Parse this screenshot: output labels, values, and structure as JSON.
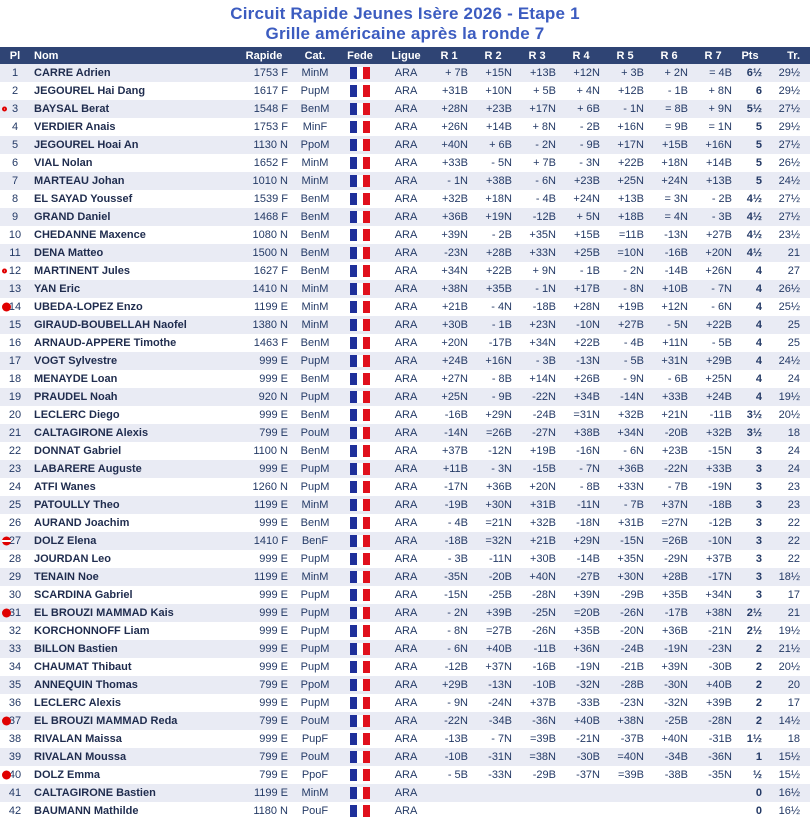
{
  "page_title": {
    "line1": "Circuit Rapide Jeunes Isère 2026 - Etape 1",
    "line2": "Grille américaine après la ronde 7"
  },
  "colors": {
    "title_blue": "#3c5cc0",
    "header_bar_bg": "#2f4474",
    "header_text": "#ffffff",
    "row_alt_bg": "#e9ebf4",
    "body_text": "#243a66",
    "marker_red": "#e00000",
    "flag_blue": "#1e2f9a",
    "flag_red": "#e0101d"
  },
  "table": {
    "columns": [
      "Pl",
      "Nom",
      "Rapide",
      "Cat.",
      "Fede",
      "Ligue",
      "R 1",
      "R 2",
      "R 3",
      "R 4",
      "R 5",
      "R 6",
      "R 7",
      "Pts",
      "Tr."
    ],
    "flag_icon": "france-flag",
    "rows": [
      {
        "marker": "",
        "pl": "1",
        "nom": "CARRE Adrien",
        "rapide": "1753 F",
        "cat": "MinM",
        "ligue": "ARA",
        "rounds": [
          "+ 7B",
          "+15N",
          "+13B",
          "+12N",
          "+ 3B",
          "+ 2N",
          "= 4B"
        ],
        "pts": "6½",
        "tr": "29½"
      },
      {
        "marker": "",
        "pl": "2",
        "nom": "JEGOUREL Hai Dang",
        "rapide": "1617 F",
        "cat": "PupM",
        "ligue": "ARA",
        "rounds": [
          "+31B",
          "+10N",
          "+ 5B",
          "+ 4N",
          "+12B",
          "- 1B",
          "+ 8N"
        ],
        "pts": "6",
        "tr": "29½"
      },
      {
        "marker": "ring",
        "pl": "3",
        "nom": "BAYSAL Berat",
        "rapide": "1548 F",
        "cat": "BenM",
        "ligue": "ARA",
        "rounds": [
          "+28N",
          "+23B",
          "+17N",
          "+ 6B",
          "- 1N",
          "= 8B",
          "+ 9N"
        ],
        "pts": "5½",
        "tr": "27½"
      },
      {
        "marker": "",
        "pl": "4",
        "nom": "VERDIER Anais",
        "rapide": "1753 F",
        "cat": "MinF",
        "ligue": "ARA",
        "rounds": [
          "+26N",
          "+14B",
          "+ 8N",
          "- 2B",
          "+16N",
          "= 9B",
          "= 1N"
        ],
        "pts": "5",
        "tr": "29½"
      },
      {
        "marker": "",
        "pl": "5",
        "nom": "JEGOUREL Hoai An",
        "rapide": "1130 N",
        "cat": "PpoM",
        "ligue": "ARA",
        "rounds": [
          "+40N",
          "+ 6B",
          "- 2N",
          "- 9B",
          "+17N",
          "+15B",
          "+16N"
        ],
        "pts": "5",
        "tr": "27½"
      },
      {
        "marker": "",
        "pl": "6",
        "nom": "VIAL Nolan",
        "rapide": "1652 F",
        "cat": "MinM",
        "ligue": "ARA",
        "rounds": [
          "+33B",
          "- 5N",
          "+ 7B",
          "- 3N",
          "+22B",
          "+18N",
          "+14B"
        ],
        "pts": "5",
        "tr": "26½"
      },
      {
        "marker": "",
        "pl": "7",
        "nom": "MARTEAU Johan",
        "rapide": "1010 N",
        "cat": "MinM",
        "ligue": "ARA",
        "rounds": [
          "- 1N",
          "+38B",
          "- 6N",
          "+23B",
          "+25N",
          "+24N",
          "+13B"
        ],
        "pts": "5",
        "tr": "24½"
      },
      {
        "marker": "",
        "pl": "8",
        "nom": "EL SAYAD Youssef",
        "rapide": "1539 F",
        "cat": "BenM",
        "ligue": "ARA",
        "rounds": [
          "+32B",
          "+18N",
          "- 4B",
          "+24N",
          "+13B",
          "= 3N",
          "- 2B"
        ],
        "pts": "4½",
        "tr": "27½"
      },
      {
        "marker": "",
        "pl": "9",
        "nom": "GRAND Daniel",
        "rapide": "1468 F",
        "cat": "BenM",
        "ligue": "ARA",
        "rounds": [
          "+36B",
          "+19N",
          "-12B",
          "+ 5N",
          "+18B",
          "= 4N",
          "- 3B"
        ],
        "pts": "4½",
        "tr": "27½"
      },
      {
        "marker": "",
        "pl": "10",
        "nom": "CHEDANNE Maxence",
        "rapide": "1080 N",
        "cat": "BenM",
        "ligue": "ARA",
        "rounds": [
          "+39N",
          "- 2B",
          "+35N",
          "+15B",
          "=11B",
          "-13N",
          "+27B"
        ],
        "pts": "4½",
        "tr": "23½"
      },
      {
        "marker": "",
        "pl": "11",
        "nom": "DENA Matteo",
        "rapide": "1500 N",
        "cat": "BenM",
        "ligue": "ARA",
        "rounds": [
          "-23N",
          "+28B",
          "+33N",
          "+25B",
          "=10N",
          "-16B",
          "+20N"
        ],
        "pts": "4½",
        "tr": "21"
      },
      {
        "marker": "ring",
        "pl": "12",
        "nom": "MARTINENT Jules",
        "rapide": "1627 F",
        "cat": "BenM",
        "ligue": "ARA",
        "rounds": [
          "+34N",
          "+22B",
          "+ 9N",
          "- 1B",
          "- 2N",
          "-14B",
          "+26N"
        ],
        "pts": "4",
        "tr": "27"
      },
      {
        "marker": "",
        "pl": "13",
        "nom": "YAN Eric",
        "rapide": "1410 N",
        "cat": "MinM",
        "ligue": "ARA",
        "rounds": [
          "+38N",
          "+35B",
          "- 1N",
          "+17B",
          "- 8N",
          "+10B",
          "- 7N"
        ],
        "pts": "4",
        "tr": "26½"
      },
      {
        "marker": "dot",
        "pl": "14",
        "nom": "UBEDA-LOPEZ Enzo",
        "rapide": "1199 E",
        "cat": "MinM",
        "ligue": "ARA",
        "rounds": [
          "+21B",
          "- 4N",
          "-18B",
          "+28N",
          "+19B",
          "+12N",
          "- 6N"
        ],
        "pts": "4",
        "tr": "25½"
      },
      {
        "marker": "",
        "pl": "15",
        "nom": "GIRAUD-BOUBELLAH Naofel",
        "rapide": "1380 N",
        "cat": "MinM",
        "ligue": "ARA",
        "rounds": [
          "+30B",
          "- 1B",
          "+23N",
          "-10N",
          "+27B",
          "- 5N",
          "+22B"
        ],
        "pts": "4",
        "tr": "25"
      },
      {
        "marker": "",
        "pl": "16",
        "nom": "ARNAUD-APPERE Timothe",
        "rapide": "1463 F",
        "cat": "BenM",
        "ligue": "ARA",
        "rounds": [
          "+20N",
          "-17B",
          "+34N",
          "+22B",
          "- 4B",
          "+11N",
          "- 5B"
        ],
        "pts": "4",
        "tr": "25"
      },
      {
        "marker": "",
        "pl": "17",
        "nom": "VOGT Sylvestre",
        "rapide": "999 E",
        "cat": "PupM",
        "ligue": "ARA",
        "rounds": [
          "+24B",
          "+16N",
          "- 3B",
          "-13N",
          "- 5B",
          "+31N",
          "+29B"
        ],
        "pts": "4",
        "tr": "24½"
      },
      {
        "marker": "",
        "pl": "18",
        "nom": "MENAYDE Loan",
        "rapide": "999 E",
        "cat": "BenM",
        "ligue": "ARA",
        "rounds": [
          "+27N",
          "- 8B",
          "+14N",
          "+26B",
          "- 9N",
          "- 6B",
          "+25N"
        ],
        "pts": "4",
        "tr": "24"
      },
      {
        "marker": "",
        "pl": "19",
        "nom": "PRAUDEL Noah",
        "rapide": "920 N",
        "cat": "PupM",
        "ligue": "ARA",
        "rounds": [
          "+25N",
          "- 9B",
          "-22N",
          "+34B",
          "-14N",
          "+33B",
          "+24B"
        ],
        "pts": "4",
        "tr": "19½"
      },
      {
        "marker": "",
        "pl": "20",
        "nom": "LECLERC Diego",
        "rapide": "999 E",
        "cat": "BenM",
        "ligue": "ARA",
        "rounds": [
          "-16B",
          "+29N",
          "-24B",
          "=31N",
          "+32B",
          "+21N",
          "-11B"
        ],
        "pts": "3½",
        "tr": "20½"
      },
      {
        "marker": "",
        "pl": "21",
        "nom": "CALTAGIRONE Alexis",
        "rapide": "799 E",
        "cat": "PouM",
        "ligue": "ARA",
        "rounds": [
          "-14N",
          "=26B",
          "-27N",
          "+38B",
          "+34N",
          "-20B",
          "+32B"
        ],
        "pts": "3½",
        "tr": "18"
      },
      {
        "marker": "",
        "pl": "22",
        "nom": "DONNAT Gabriel",
        "rapide": "1100 N",
        "cat": "BenM",
        "ligue": "ARA",
        "rounds": [
          "+37B",
          "-12N",
          "+19B",
          "-16N",
          "- 6N",
          "+23B",
          "-15N"
        ],
        "pts": "3",
        "tr": "24"
      },
      {
        "marker": "",
        "pl": "23",
        "nom": "LABARERE Auguste",
        "rapide": "999 E",
        "cat": "PupM",
        "ligue": "ARA",
        "rounds": [
          "+11B",
          "- 3N",
          "-15B",
          "- 7N",
          "+36B",
          "-22N",
          "+33B"
        ],
        "pts": "3",
        "tr": "24"
      },
      {
        "marker": "",
        "pl": "24",
        "nom": "ATFI Wanes",
        "rapide": "1260 N",
        "cat": "PupM",
        "ligue": "ARA",
        "rounds": [
          "-17N",
          "+36B",
          "+20N",
          "- 8B",
          "+33N",
          "- 7B",
          "-19N"
        ],
        "pts": "3",
        "tr": "23"
      },
      {
        "marker": "",
        "pl": "25",
        "nom": "PATOULLY Theo",
        "rapide": "1199 E",
        "cat": "MinM",
        "ligue": "ARA",
        "rounds": [
          "-19B",
          "+30N",
          "+31B",
          "-11N",
          "- 7B",
          "+37N",
          "-18B"
        ],
        "pts": "3",
        "tr": "23"
      },
      {
        "marker": "",
        "pl": "26",
        "nom": "AURAND Joachim",
        "rapide": "999 E",
        "cat": "BenM",
        "ligue": "ARA",
        "rounds": [
          "- 4B",
          "=21N",
          "+32B",
          "-18N",
          "+31B",
          "=27N",
          "-12B"
        ],
        "pts": "3",
        "tr": "22"
      },
      {
        "marker": "bar",
        "pl": "27",
        "nom": "DOLZ Elena",
        "rapide": "1410 F",
        "cat": "BenF",
        "ligue": "ARA",
        "rounds": [
          "-18B",
          "=32N",
          "+21B",
          "+29N",
          "-15N",
          "=26B",
          "-10N"
        ],
        "pts": "3",
        "tr": "22"
      },
      {
        "marker": "",
        "pl": "28",
        "nom": "JOURDAN Leo",
        "rapide": "999 E",
        "cat": "PupM",
        "ligue": "ARA",
        "rounds": [
          "- 3B",
          "-11N",
          "+30B",
          "-14B",
          "+35N",
          "-29N",
          "+37B"
        ],
        "pts": "3",
        "tr": "22"
      },
      {
        "marker": "",
        "pl": "29",
        "nom": "TENAIN Noe",
        "rapide": "1199 E",
        "cat": "MinM",
        "ligue": "ARA",
        "rounds": [
          "-35N",
          "-20B",
          "+40N",
          "-27B",
          "+30N",
          "+28B",
          "-17N"
        ],
        "pts": "3",
        "tr": "18½"
      },
      {
        "marker": "",
        "pl": "30",
        "nom": "SCARDINA Gabriel",
        "rapide": "999 E",
        "cat": "PupM",
        "ligue": "ARA",
        "rounds": [
          "-15N",
          "-25B",
          "-28N",
          "+39N",
          "-29B",
          "+35B",
          "+34N"
        ],
        "pts": "3",
        "tr": "17"
      },
      {
        "marker": "dot",
        "pl": "31",
        "nom": "EL BROUZI MAMMAD Kais",
        "rapide": "999 E",
        "cat": "PupM",
        "ligue": "ARA",
        "rounds": [
          "- 2N",
          "+39B",
          "-25N",
          "=20B",
          "-26N",
          "-17B",
          "+38N"
        ],
        "pts": "2½",
        "tr": "21"
      },
      {
        "marker": "",
        "pl": "32",
        "nom": "KORCHONNOFF Liam",
        "rapide": "999 E",
        "cat": "PupM",
        "ligue": "ARA",
        "rounds": [
          "- 8N",
          "=27B",
          "-26N",
          "+35B",
          "-20N",
          "+36B",
          "-21N"
        ],
        "pts": "2½",
        "tr": "19½"
      },
      {
        "marker": "",
        "pl": "33",
        "nom": "BILLON Bastien",
        "rapide": "999 E",
        "cat": "PupM",
        "ligue": "ARA",
        "rounds": [
          "- 6N",
          "+40B",
          "-11B",
          "+36N",
          "-24B",
          "-19N",
          "-23N"
        ],
        "pts": "2",
        "tr": "21½"
      },
      {
        "marker": "",
        "pl": "34",
        "nom": "CHAUMAT Thibaut",
        "rapide": "999 E",
        "cat": "PupM",
        "ligue": "ARA",
        "rounds": [
          "-12B",
          "+37N",
          "-16B",
          "-19N",
          "-21B",
          "+39N",
          "-30B"
        ],
        "pts": "2",
        "tr": "20½"
      },
      {
        "marker": "",
        "pl": "35",
        "nom": "ANNEQUIN Thomas",
        "rapide": "799 E",
        "cat": "PpoM",
        "ligue": "ARA",
        "rounds": [
          "+29B",
          "-13N",
          "-10B",
          "-32N",
          "-28B",
          "-30N",
          "+40B"
        ],
        "pts": "2",
        "tr": "20"
      },
      {
        "marker": "",
        "pl": "36",
        "nom": "LECLERC Alexis",
        "rapide": "999 E",
        "cat": "PupM",
        "ligue": "ARA",
        "rounds": [
          "- 9N",
          "-24N",
          "+37B",
          "-33B",
          "-23N",
          "-32N",
          "+39B"
        ],
        "pts": "2",
        "tr": "17"
      },
      {
        "marker": "dot",
        "pl": "37",
        "nom": "EL BROUZI MAMMAD Reda",
        "rapide": "799 E",
        "cat": "PouM",
        "ligue": "ARA",
        "rounds": [
          "-22N",
          "-34B",
          "-36N",
          "+40B",
          "+38N",
          "-25B",
          "-28N"
        ],
        "pts": "2",
        "tr": "14½"
      },
      {
        "marker": "",
        "pl": "38",
        "nom": "RIVALAN Maissa",
        "rapide": "999 E",
        "cat": "PupF",
        "ligue": "ARA",
        "rounds": [
          "-13B",
          "- 7N",
          "=39B",
          "-21N",
          "-37B",
          "+40N",
          "-31B"
        ],
        "pts": "1½",
        "tr": "18"
      },
      {
        "marker": "",
        "pl": "39",
        "nom": "RIVALAN Moussa",
        "rapide": "799 E",
        "cat": "PouM",
        "ligue": "ARA",
        "rounds": [
          "-10B",
          "-31N",
          "=38N",
          "-30B",
          "=40N",
          "-34B",
          "-36N"
        ],
        "pts": "1",
        "tr": "15½"
      },
      {
        "marker": "dot",
        "pl": "40",
        "nom": "DOLZ Emma",
        "rapide": "799 E",
        "cat": "PpoF",
        "ligue": "ARA",
        "rounds": [
          "- 5B",
          "-33N",
          "-29B",
          "-37N",
          "=39B",
          "-38B",
          "-35N"
        ],
        "pts": "½",
        "tr": "15½"
      },
      {
        "marker": "",
        "pl": "41",
        "nom": "CALTAGIRONE Bastien",
        "rapide": "1199 E",
        "cat": "MinM",
        "ligue": "ARA",
        "rounds": [
          "",
          "",
          "",
          "",
          "",
          "",
          ""
        ],
        "pts": "0",
        "tr": "16½"
      },
      {
        "marker": "",
        "pl": "42",
        "nom": "BAUMANN Mathilde",
        "rapide": "1180 N",
        "cat": "PouF",
        "ligue": "ARA",
        "rounds": [
          "",
          "",
          "",
          "",
          "",
          "",
          ""
        ],
        "pts": "0",
        "tr": "16½"
      }
    ]
  }
}
